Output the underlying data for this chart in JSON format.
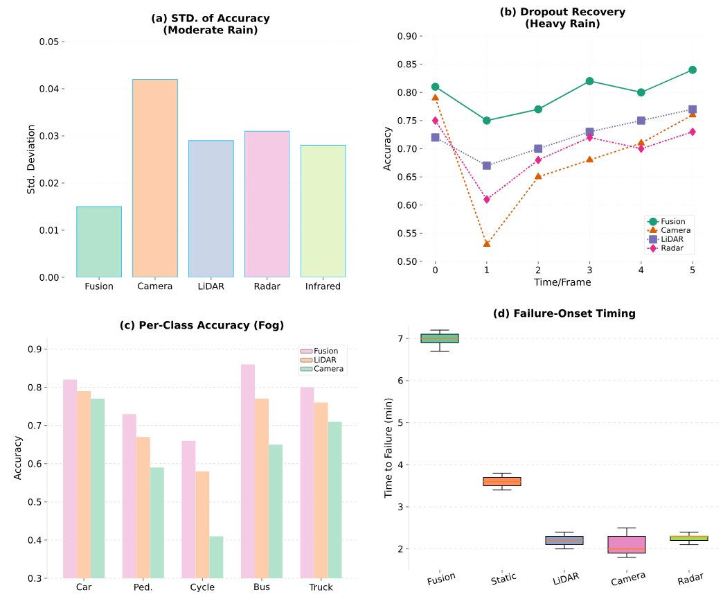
{
  "chart_data": [
    {
      "type": "bar",
      "title": "(a) STD. of Accuracy",
      "subtitle": "(Moderate Rain)",
      "ylabel": "Std. Deviation",
      "categories": [
        "Fusion",
        "Camera",
        "LiDAR",
        "Radar",
        "Infrared"
      ],
      "values": [
        0.015,
        0.042,
        0.029,
        0.031,
        0.028
      ],
      "colors": [
        "#b3e2cd",
        "#fdcdac",
        "#cbd5e8",
        "#f4cae4",
        "#e6f5c9"
      ],
      "ylim": [
        0,
        0.05
      ],
      "yticks": [
        {
          "value": 0,
          "label": "0.00"
        },
        {
          "value": 0.01,
          "label": "0.01"
        },
        {
          "value": 0.02,
          "label": "0.02"
        },
        {
          "value": 0.03,
          "label": "0.03"
        },
        {
          "value": 0.04,
          "label": "0.04"
        },
        {
          "value": 0.05,
          "label": "0.05"
        }
      ],
      "grid": "y"
    },
    {
      "type": "line",
      "title": "(b) Dropout Recovery",
      "subtitle": "(Heavy Rain)",
      "xlabel": "Time/Frame",
      "ylabel": "Accuracy",
      "x": [
        0,
        1,
        2,
        3,
        4,
        5
      ],
      "series": [
        {
          "name": "Fusion",
          "color": "#1b9e77",
          "values": [
            0.81,
            0.75,
            0.77,
            0.82,
            0.8,
            0.84
          ],
          "marker": "circle",
          "line_style": "solid"
        },
        {
          "name": "Camera",
          "color": "#d95f02",
          "values": [
            0.79,
            0.53,
            0.65,
            0.68,
            0.71,
            0.76
          ],
          "marker": "triangle",
          "line_style": "dashed"
        },
        {
          "name": "LiDAR",
          "color": "#7570b3",
          "values": [
            0.72,
            0.67,
            0.7,
            0.73,
            0.75,
            0.77
          ],
          "marker": "square",
          "line_style": "dotted"
        },
        {
          "name": "Radar",
          "color": "#e7298a",
          "values": [
            0.75,
            0.61,
            0.68,
            0.72,
            0.7,
            0.73
          ],
          "marker": "diamond",
          "line_style": "dashdot"
        }
      ],
      "xlim": [
        -0.25,
        5.2
      ],
      "xticks": [
        0,
        1,
        2,
        3,
        4,
        5
      ],
      "ylim": [
        0.5,
        0.9
      ],
      "yticks": [
        {
          "value": 0.5,
          "label": "0.50"
        },
        {
          "value": 0.55,
          "label": "0.55"
        },
        {
          "value": 0.6,
          "label": "0.60"
        },
        {
          "value": 0.65,
          "label": "0.65"
        },
        {
          "value": 0.7,
          "label": "0.70"
        },
        {
          "value": 0.75,
          "label": "0.75"
        },
        {
          "value": 0.8,
          "label": "0.80"
        },
        {
          "value": 0.85,
          "label": "0.85"
        },
        {
          "value": 0.9,
          "label": "0.90"
        }
      ],
      "grid": true,
      "legend": "bottom right"
    },
    {
      "type": "bar",
      "title": "(c) Per-Class Accuracy (Fog)",
      "ylabel": "Accuracy",
      "categories": [
        "Car",
        "Ped.",
        "Cycle",
        "Bus",
        "Truck"
      ],
      "series": [
        {
          "name": "Fusion",
          "color": "#f4cae4",
          "values": [
            0.82,
            0.73,
            0.66,
            0.86,
            0.8
          ]
        },
        {
          "name": "LiDAR",
          "color": "#fdcdac",
          "values": [
            0.79,
            0.67,
            0.58,
            0.77,
            0.76
          ]
        },
        {
          "name": "Camera",
          "color": "#b3e2cd",
          "values": [
            0.77,
            0.59,
            0.41,
            0.65,
            0.71
          ]
        }
      ],
      "ylim": [
        0.3,
        0.93
      ],
      "yticks": [
        0.3,
        0.4,
        0.5,
        0.6,
        0.7,
        0.8,
        0.9
      ],
      "grid": "y",
      "legend": "top right"
    },
    {
      "type": "box",
      "title": "(d) Failure-Onset Timing",
      "ylabel": "Time to Failure (min)",
      "categories": [
        "Fusion",
        "Static",
        "LiDAR",
        "Camera",
        "Radar"
      ],
      "boxes": [
        {
          "low": 6.7,
          "q1": 6.9,
          "median": 7.0,
          "q3": 7.1,
          "high": 7.2
        },
        {
          "low": 3.4,
          "q1": 3.5,
          "median": 3.6,
          "q3": 3.7,
          "high": 3.8
        },
        {
          "low": 2.0,
          "q1": 2.1,
          "median": 2.2,
          "q3": 2.3,
          "high": 2.4
        },
        {
          "low": 1.8,
          "q1": 1.9,
          "median": 2.0,
          "q3": 2.3,
          "high": 2.5
        },
        {
          "low": 2.1,
          "q1": 2.2,
          "median": 2.3,
          "q3": 2.3,
          "high": 2.4
        }
      ],
      "colors": [
        "#66c2a5",
        "#fc8d62",
        "#8da0cb",
        "#e78ac3",
        "#a6d854"
      ],
      "ylim": [
        1.5,
        7.3
      ],
      "yticks": [
        2,
        3,
        4,
        5,
        6,
        7
      ],
      "grid": "y"
    }
  ]
}
